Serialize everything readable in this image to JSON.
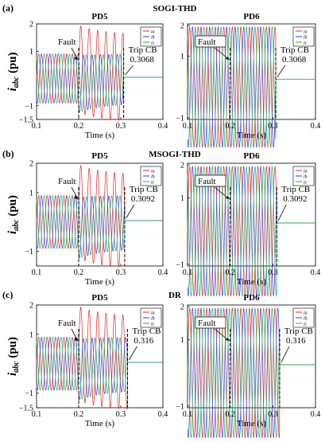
{
  "figure": {
    "ylabel": "i",
    "ylabel_sub": "abc",
    "ylabel_unit": "(pu)",
    "xlabel": "Time (s)"
  },
  "chart_data": [
    {
      "type": "line",
      "panel": "(a)",
      "method": "SOGI-THD",
      "title": "PD5",
      "xlim": [
        0.1,
        0.4
      ],
      "ylim": [
        -1.5,
        2
      ],
      "xticks": [
        "0.1",
        "0.2",
        "0.3",
        "0.4"
      ],
      "yticks": [
        "−1.5",
        "−1",
        "1",
        "2"
      ],
      "ylabel": "iabc (pu)",
      "xlabel": "Time (s)",
      "legend": [
        "ia",
        "ib",
        "ic"
      ],
      "legend_position": "top-right",
      "fault_time": 0.2,
      "trip_time": 0.3068,
      "amp_pre": 0.9,
      "amp_a_post": 1.6,
      "annotations": [
        {
          "text": "Fault"
        },
        {
          "text": "Trip CB"
        },
        {
          "text": "0.3068"
        }
      ],
      "colors": {
        "ia": "#e0282a",
        "ib": "#2a3fd8",
        "ic": "#22b14c"
      }
    },
    {
      "type": "line",
      "panel": "(a)",
      "method": "SOGI-THD",
      "title": "PD6",
      "xlim": [
        0.1,
        0.4
      ],
      "ylim": [
        -1.05,
        2.05
      ],
      "xticks": [
        "0.1",
        "0.2",
        "0.3",
        "0.4"
      ],
      "yticks": [
        "−1",
        "1",
        "2"
      ],
      "xlabel": "Time (s)",
      "legend": [
        "ia",
        "ib",
        "ic"
      ],
      "legend_position": "top-right",
      "fault_time": 0.2,
      "trip_time": 0.3068,
      "amp_pre": 1.95,
      "amp_a_post": 1.95,
      "annotations": [
        {
          "text": "Fault"
        },
        {
          "text": "Trip CB"
        },
        {
          "text": "0.3068"
        }
      ],
      "colors": {
        "ia": "#e0282a",
        "ib": "#2a3fd8",
        "ic": "#22b14c"
      }
    },
    {
      "type": "line",
      "panel": "(b)",
      "method": "MSOGI-THD",
      "title": "PD5",
      "xlim": [
        0.1,
        0.4
      ],
      "ylim": [
        -1.5,
        2
      ],
      "xticks": [
        "0.1",
        "0.2",
        "0.3",
        "0.4"
      ],
      "yticks": [
        "−1",
        "1",
        "2"
      ],
      "ylabel": "iabc (pu)",
      "xlabel": "Time (s)",
      "legend": [
        "ia",
        "ib",
        "ic"
      ],
      "legend_position": "top-right",
      "fault_time": 0.2,
      "trip_time": 0.3092,
      "amp_pre": 0.9,
      "amp_a_post": 1.6,
      "annotations": [
        {
          "text": "Fault"
        },
        {
          "text": "Trip CB"
        },
        {
          "text": "0.3092"
        }
      ],
      "colors": {
        "ia": "#e0282a",
        "ib": "#2a3fd8",
        "ic": "#22b14c"
      }
    },
    {
      "type": "line",
      "panel": "(b)",
      "method": "MSOGI-THD",
      "title": "PD6",
      "xlim": [
        0.1,
        0.4
      ],
      "ylim": [
        -1.05,
        2.05
      ],
      "xticks": [
        "0.1",
        "0.2",
        "0.3",
        "0.4"
      ],
      "yticks": [
        "−1",
        "1",
        "2"
      ],
      "xlabel": "Time (s)",
      "legend": [
        "ia",
        "ib",
        "ic"
      ],
      "legend_position": "top-right",
      "fault_time": 0.2,
      "trip_time": 0.3092,
      "amp_pre": 1.95,
      "amp_a_post": 1.95,
      "annotations": [
        {
          "text": "Fault"
        },
        {
          "text": "Trip CB"
        },
        {
          "text": "0.3092"
        }
      ],
      "colors": {
        "ia": "#e0282a",
        "ib": "#2a3fd8",
        "ic": "#22b14c"
      }
    },
    {
      "type": "line",
      "panel": "(c)",
      "method": "DR",
      "title": "PD5",
      "xlim": [
        0.1,
        0.4
      ],
      "ylim": [
        -1.5,
        2
      ],
      "xticks": [
        "0.1",
        "0.2",
        "0.3",
        "0.4"
      ],
      "yticks": [
        "−1.5",
        "−1",
        "1",
        "2"
      ],
      "ylabel": "iabc (pu)",
      "xlabel": "Time (s)",
      "legend": [
        "ia",
        "ib",
        "ic"
      ],
      "legend_position": "top-right",
      "fault_time": 0.2,
      "trip_time": 0.316,
      "amp_pre": 0.9,
      "amp_a_post": 1.6,
      "annotations": [
        {
          "text": "Fault"
        },
        {
          "text": "Trip CB"
        },
        {
          "text": "0.316"
        }
      ],
      "colors": {
        "ia": "#e0282a",
        "ib": "#2a3fd8",
        "ic": "#22b14c"
      }
    },
    {
      "type": "line",
      "panel": "(c)",
      "method": "DR",
      "title": "PD6",
      "xlim": [
        0.1,
        0.4
      ],
      "ylim": [
        -1.05,
        2.05
      ],
      "xticks": [
        "0.1",
        "0.2",
        "0.3",
        "0.4"
      ],
      "yticks": [
        "−1",
        "1",
        "2"
      ],
      "xlabel": "Time (s)",
      "legend": [
        "ia",
        "ib",
        "ic"
      ],
      "legend_position": "top-right",
      "fault_time": 0.2,
      "trip_time": 0.316,
      "amp_pre": 1.95,
      "amp_a_post": 1.95,
      "annotations": [
        {
          "text": "Fault"
        },
        {
          "text": "Trip CB"
        },
        {
          "text": "0.316"
        }
      ],
      "colors": {
        "ia": "#e0282a",
        "ib": "#2a3fd8",
        "ic": "#22b14c"
      }
    }
  ]
}
